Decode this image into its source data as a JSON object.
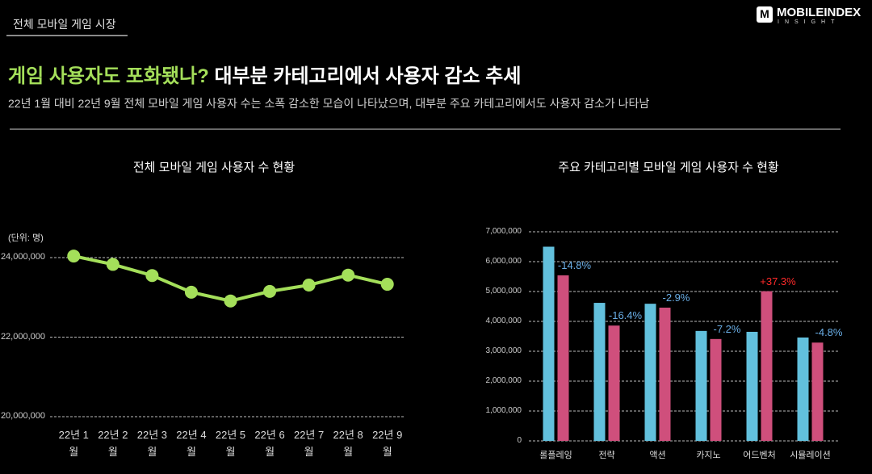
{
  "header": {
    "tab": "전체 모바일 게임 시장",
    "logo_mark": "M",
    "logo_name": "MOBILEINDEX",
    "logo_sub": "INSIGHT",
    "title_highlight": "게임 사용자도 포화됐나?",
    "title_rest": "대부분 카테고리에서 사용자 감소 추세",
    "subtitle": "22년 1월 대비 22년 9월 전체 모바일 게임 사용자 수는 소폭 감소한 모습이 나타났으며, 대부분 주요 카테고리에서도 사용자 감소가 나타남"
  },
  "chart_data": [
    {
      "type": "line",
      "title": "전체 모바일 게임 사용자 수 현황",
      "unit_note": "(단위: 명)",
      "categories": [
        "22년 1월",
        "22년 2월",
        "22년 3월",
        "22년 4월",
        "22년 5월",
        "22년 6월",
        "22년 7월",
        "22년 8월",
        "22년 9월"
      ],
      "values": [
        24040000,
        23830000,
        23550000,
        23130000,
        22910000,
        23150000,
        23310000,
        23560000,
        23330000
      ],
      "color": "#a4df5a",
      "ylim": [
        20000000,
        24600000
      ],
      "yticks": [
        {
          "value": 20000000,
          "label": "20,000,000"
        },
        {
          "value": 22000000,
          "label": "22,000,000"
        },
        {
          "value": 24000000,
          "label": "24,000,000"
        }
      ],
      "grid": true
    },
    {
      "type": "bar",
      "title": "주요 카테고리별 모바일 게임 사용자 수 현황",
      "categories": [
        "롤플레잉",
        "전략",
        "액션",
        "카지노",
        "어드벤처",
        "시뮬레이션"
      ],
      "series": [
        {
          "color": "#62c0dd",
          "values": [
            6500000,
            4620000,
            4590000,
            3680000,
            3650000,
            3460000
          ]
        },
        {
          "color": "#cf4f7c",
          "values": [
            5540000,
            3860000,
            4460000,
            3410000,
            5010000,
            3290000
          ]
        }
      ],
      "annotations": [
        {
          "text": "-14.8%",
          "color": "#6aaee6"
        },
        {
          "text": "-16.4%",
          "color": "#6aaee6"
        },
        {
          "text": "-2.9%",
          "color": "#6aaee6"
        },
        {
          "text": "-7.2%",
          "color": "#6aaee6"
        },
        {
          "text": "+37.3%",
          "color": "#ff2a2a"
        },
        {
          "text": "-4.8%",
          "color": "#6aaee6"
        }
      ],
      "ylim": [
        0,
        7000000
      ],
      "yticks": [
        0,
        {
          "value": 1000000,
          "label": "1,000,000"
        },
        {
          "value": 2000000,
          "label": "2,000,000"
        },
        {
          "value": 3000000,
          "label": "3,000,000"
        },
        {
          "value": 4000000,
          "label": "4,000,000"
        },
        {
          "value": 5000000,
          "label": "5,000,000"
        },
        {
          "value": 6000000,
          "label": "6,000,000"
        },
        {
          "value": 7000000,
          "label": "7,000,000"
        }
      ],
      "grid": true
    }
  ]
}
